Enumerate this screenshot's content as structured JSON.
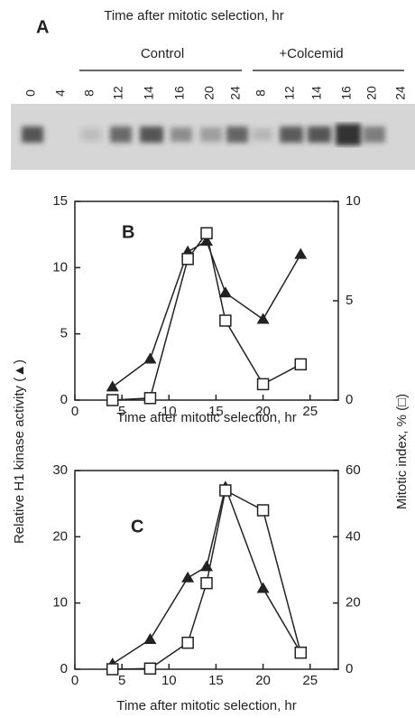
{
  "panel_a": {
    "label": "A",
    "title": "Time after mitotic selection, hr",
    "groups": [
      "Control",
      "+Colcemid"
    ],
    "lanes": [
      "0",
      "4",
      "8",
      "12",
      "14",
      "16",
      "20",
      "24",
      "8",
      "12",
      "14",
      "16",
      "20",
      "24"
    ]
  },
  "shared_ylabel": "Relative H1 kinase activity (▲)",
  "shared_y2label": "Mitotic index, % (□)",
  "chart_data": [
    {
      "type": "line",
      "label": "B",
      "xlabel": "Time after mitotic selection, hr",
      "xlim": [
        0,
        28
      ],
      "xticks": [
        0,
        5,
        10,
        15,
        20,
        25
      ],
      "ylim": [
        0,
        15
      ],
      "yticks": [
        0,
        5,
        10,
        15
      ],
      "y2lim": [
        0,
        10
      ],
      "y2ticks": [
        0,
        5,
        10
      ],
      "series": [
        {
          "marker": "triangle",
          "color": "#222222",
          "x": [
            4,
            8,
            12,
            14,
            16,
            20,
            24
          ],
          "values": [
            1.0,
            3.1,
            11.2,
            12.0,
            8.1,
            6.1,
            11.0
          ]
        },
        {
          "marker": "square",
          "color": "#222222",
          "axis": "y2",
          "x": [
            4,
            8,
            12,
            14,
            16,
            20,
            24
          ],
          "values": [
            0,
            0.1,
            7.1,
            8.4,
            4.0,
            0.8,
            1.8
          ]
        }
      ]
    },
    {
      "type": "line",
      "label": "C",
      "xlabel": "Time after mitotic selection, hr",
      "xlim": [
        0,
        28
      ],
      "xticks": [
        0,
        5,
        10,
        15,
        20,
        25
      ],
      "ylim": [
        0,
        30
      ],
      "yticks": [
        0,
        10,
        20,
        30
      ],
      "y2lim": [
        0,
        60
      ],
      "y2ticks": [
        0,
        20,
        40,
        60
      ],
      "series": [
        {
          "marker": "triangle",
          "color": "#222222",
          "x": [
            4,
            8,
            12,
            14,
            16,
            20,
            24
          ],
          "values": [
            0.8,
            4.5,
            13.8,
            15.5,
            27.5,
            12.2,
            2.5
          ]
        },
        {
          "marker": "square",
          "color": "#222222",
          "axis": "y2",
          "x": [
            4,
            8,
            12,
            14,
            16,
            20,
            24
          ],
          "values": [
            0,
            0.2,
            8,
            26,
            54,
            48,
            5
          ]
        }
      ]
    }
  ]
}
